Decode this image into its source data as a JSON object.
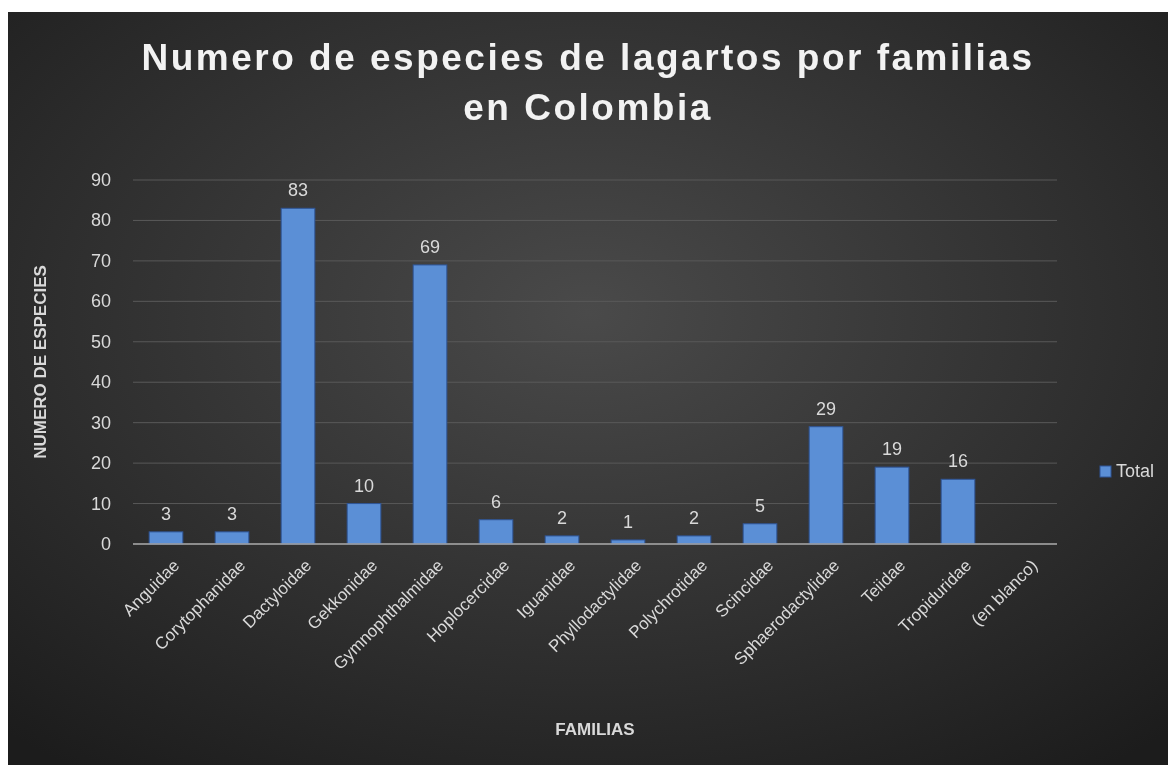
{
  "chart_data": {
    "type": "bar",
    "title": "Numero de especies de lagartos por familias en Colombia",
    "xlabel": "FAMILIAS",
    "ylabel": "NUMERO DE ESPECIES",
    "categories": [
      "Anguidae",
      "Corytophanidae",
      "Dactyloidae",
      "Gekkonidae",
      "Gymnophthalmidae",
      "Hoplocercidae",
      "Iguanidae",
      "Phyllodactylidae",
      "Polychrotidae",
      "Scincidae",
      "Sphaerodactylidae",
      "Teiidae",
      "Tropiduridae",
      "(en blanco)"
    ],
    "series": [
      {
        "name": "Total",
        "color": "#5b8fd6",
        "values": [
          3,
          3,
          83,
          10,
          69,
          6,
          2,
          1,
          2,
          5,
          29,
          19,
          16,
          null
        ]
      }
    ],
    "ylim": [
      0,
      90
    ],
    "yticks": [
      0,
      10,
      20,
      30,
      40,
      50,
      60,
      70,
      80,
      90
    ],
    "grid": "y",
    "legend": "right",
    "data_labels": true
  }
}
